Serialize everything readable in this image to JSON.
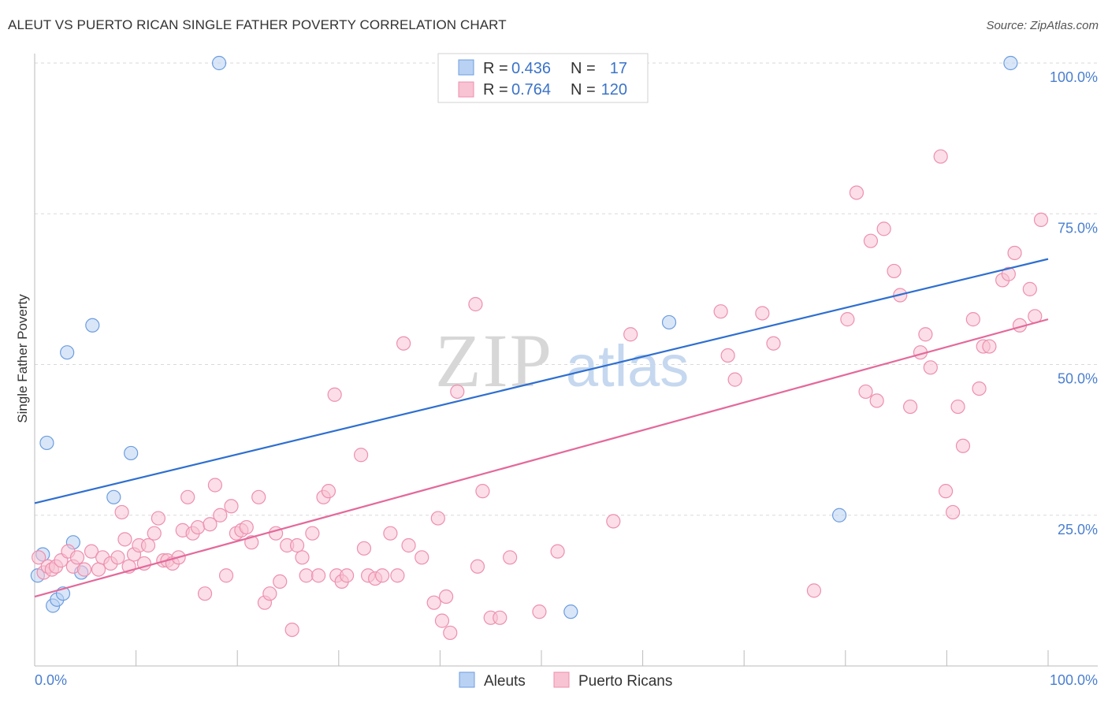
{
  "title": "ALEUT VS PUERTO RICAN SINGLE FATHER POVERTY CORRELATION CHART",
  "source": "Source: ZipAtlas.com",
  "watermark": {
    "zip": "ZIP",
    "atlas": "atlas"
  },
  "colors": {
    "aleut_fill": "#b9d1f3",
    "aleut_stroke": "#6c9de0",
    "aleut_line": "#2e6fd0",
    "pr_fill": "#f8c3d3",
    "pr_stroke": "#ee8fae",
    "pr_line": "#e4699a",
    "grid": "#d9d9d9",
    "axis": "#bbbbbb"
  },
  "legend": {
    "rows": [
      {
        "r_label": "R =",
        "r_value": "0.436",
        "n_label": "N =",
        "n_value": "17"
      },
      {
        "r_label": "R =",
        "r_value": "0.764",
        "n_label": "N =",
        "n_value": "120"
      }
    ]
  },
  "bottom_legend": [
    "Aleuts",
    "Puerto Ricans"
  ],
  "chart_data": {
    "type": "scatter",
    "title": "ALEUT VS PUERTO RICAN SINGLE FATHER POVERTY CORRELATION CHART",
    "xlabel": "",
    "ylabel": "Single Father Poverty",
    "xlim": [
      0,
      100
    ],
    "ylim": [
      0,
      100
    ],
    "x_tick_labels": {
      "left": "0.0%",
      "right": "100.0%"
    },
    "y_ticks": [
      {
        "value": 25,
        "label": "25.0%"
      },
      {
        "value": 50,
        "label": "50.0%"
      },
      {
        "value": 75,
        "label": "75.0%"
      },
      {
        "value": 100,
        "label": "100.0%"
      }
    ],
    "grid": true,
    "series": [
      {
        "name": "Aleuts",
        "r": 0.436,
        "n": 17,
        "trend": {
          "x0": 0,
          "y0": 27.0,
          "x1": 100,
          "y1": 67.5
        },
        "points": [
          [
            0.3,
            15.0
          ],
          [
            0.8,
            18.5
          ],
          [
            1.2,
            37.0
          ],
          [
            1.8,
            10.0
          ],
          [
            2.2,
            11.0
          ],
          [
            2.8,
            12.0
          ],
          [
            3.2,
            52.0
          ],
          [
            3.8,
            20.5
          ],
          [
            4.6,
            15.5
          ],
          [
            5.7,
            56.5
          ],
          [
            7.8,
            28.0
          ],
          [
            9.5,
            35.3
          ],
          [
            18.2,
            100.0
          ],
          [
            62.6,
            57.0
          ],
          [
            79.4,
            25.0
          ],
          [
            52.9,
            9.0
          ],
          [
            96.3,
            100.0
          ]
        ]
      },
      {
        "name": "Puerto Ricans",
        "r": 0.764,
        "n": 120,
        "trend": {
          "x0": 0,
          "y0": 11.5,
          "x1": 100,
          "y1": 57.5
        },
        "points": [
          [
            0.4,
            18.0
          ],
          [
            0.9,
            15.5
          ],
          [
            1.3,
            16.5
          ],
          [
            1.7,
            16.0
          ],
          [
            2.1,
            16.5
          ],
          [
            2.6,
            17.5
          ],
          [
            3.3,
            19.0
          ],
          [
            3.8,
            16.5
          ],
          [
            4.2,
            18.0
          ],
          [
            4.9,
            16.0
          ],
          [
            5.6,
            19.0
          ],
          [
            6.3,
            16.0
          ],
          [
            6.7,
            18.0
          ],
          [
            7.5,
            17.0
          ],
          [
            8.2,
            18.0
          ],
          [
            8.6,
            25.5
          ],
          [
            8.9,
            21.0
          ],
          [
            9.3,
            16.5
          ],
          [
            9.8,
            18.5
          ],
          [
            10.3,
            20.0
          ],
          [
            10.8,
            17.0
          ],
          [
            11.2,
            20.0
          ],
          [
            11.8,
            22.0
          ],
          [
            12.2,
            24.5
          ],
          [
            12.7,
            17.5
          ],
          [
            13.1,
            17.5
          ],
          [
            13.6,
            17.0
          ],
          [
            14.2,
            18.0
          ],
          [
            14.6,
            22.5
          ],
          [
            15.1,
            28.0
          ],
          [
            15.6,
            22.0
          ],
          [
            16.1,
            23.0
          ],
          [
            16.8,
            12.0
          ],
          [
            17.3,
            23.5
          ],
          [
            17.8,
            30.0
          ],
          [
            18.3,
            25.0
          ],
          [
            18.9,
            15.0
          ],
          [
            19.4,
            26.5
          ],
          [
            19.9,
            22.0
          ],
          [
            20.4,
            22.5
          ],
          [
            20.9,
            23.0
          ],
          [
            21.4,
            20.5
          ],
          [
            22.1,
            28.0
          ],
          [
            22.7,
            10.5
          ],
          [
            23.2,
            12.0
          ],
          [
            23.8,
            22.0
          ],
          [
            24.2,
            14.0
          ],
          [
            24.9,
            20.0
          ],
          [
            25.4,
            6.0
          ],
          [
            25.9,
            20.0
          ],
          [
            26.4,
            18.0
          ],
          [
            26.8,
            15.0
          ],
          [
            27.4,
            22.0
          ],
          [
            28.0,
            15.0
          ],
          [
            28.5,
            28.0
          ],
          [
            29.0,
            29.0
          ],
          [
            29.6,
            45.0
          ],
          [
            29.8,
            15.0
          ],
          [
            30.3,
            14.0
          ],
          [
            30.8,
            15.0
          ],
          [
            32.2,
            35.0
          ],
          [
            32.5,
            19.5
          ],
          [
            32.9,
            15.0
          ],
          [
            33.6,
            14.5
          ],
          [
            34.3,
            15.0
          ],
          [
            35.1,
            22.0
          ],
          [
            35.8,
            15.0
          ],
          [
            36.4,
            53.5
          ],
          [
            36.9,
            20.0
          ],
          [
            38.2,
            18.0
          ],
          [
            39.4,
            10.5
          ],
          [
            39.8,
            24.5
          ],
          [
            40.2,
            7.5
          ],
          [
            40.6,
            11.5
          ],
          [
            41.0,
            5.5
          ],
          [
            41.7,
            45.5
          ],
          [
            43.5,
            60.0
          ],
          [
            43.7,
            16.5
          ],
          [
            45.0,
            8.0
          ],
          [
            45.9,
            8.0
          ],
          [
            46.9,
            18.0
          ],
          [
            51.6,
            19.0
          ],
          [
            57.1,
            24.0
          ],
          [
            58.8,
            55.0
          ],
          [
            67.7,
            58.8
          ],
          [
            68.4,
            51.5
          ],
          [
            69.1,
            47.5
          ],
          [
            71.8,
            58.5
          ],
          [
            72.9,
            53.5
          ],
          [
            76.9,
            12.5
          ],
          [
            80.2,
            57.5
          ],
          [
            81.1,
            78.5
          ],
          [
            82.0,
            45.5
          ],
          [
            82.5,
            70.5
          ],
          [
            83.1,
            44.0
          ],
          [
            83.8,
            72.5
          ],
          [
            84.8,
            65.5
          ],
          [
            85.4,
            61.5
          ],
          [
            86.4,
            43.0
          ],
          [
            87.4,
            52.0
          ],
          [
            87.9,
            55.0
          ],
          [
            88.4,
            49.5
          ],
          [
            89.4,
            84.5
          ],
          [
            89.9,
            29.0
          ],
          [
            90.6,
            25.5
          ],
          [
            91.1,
            43.0
          ],
          [
            91.6,
            36.5
          ],
          [
            92.6,
            57.5
          ],
          [
            93.2,
            46.0
          ],
          [
            93.6,
            53.0
          ],
          [
            94.2,
            53.0
          ],
          [
            95.5,
            64.0
          ],
          [
            96.1,
            65.0
          ],
          [
            96.7,
            68.5
          ],
          [
            97.2,
            56.5
          ],
          [
            98.2,
            62.5
          ],
          [
            98.7,
            58.0
          ],
          [
            99.3,
            74.0
          ],
          [
            49.8,
            9.0
          ],
          [
            44.2,
            29.0
          ]
        ]
      }
    ]
  }
}
